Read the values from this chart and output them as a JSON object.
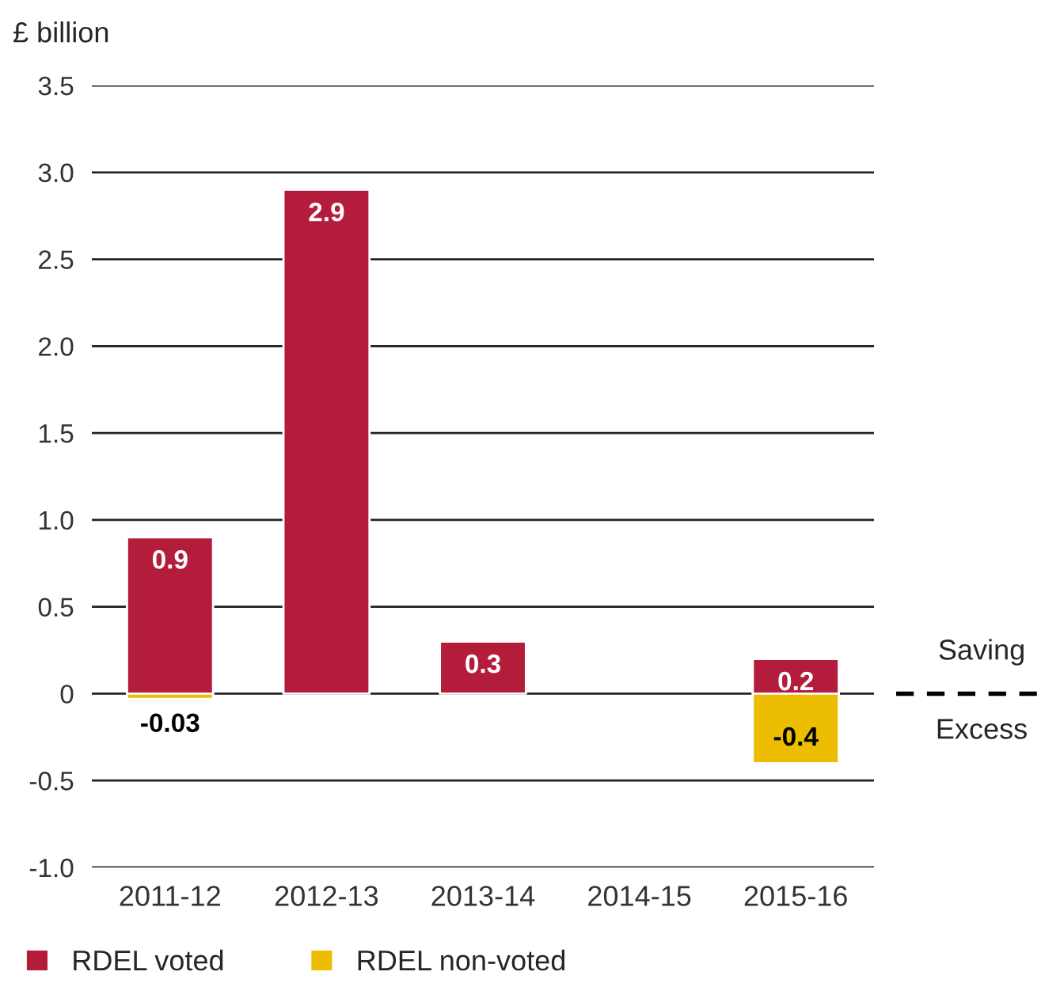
{
  "chart_data": {
    "type": "bar",
    "ylabel": "£ billion",
    "categories": [
      "2011-12",
      "2012-13",
      "2013-14",
      "2014-15",
      "2015-16"
    ],
    "series": [
      {
        "name": "RDEL voted",
        "color": "#b41c3c",
        "values": [
          0.9,
          2.9,
          0.3,
          null,
          0.2
        ]
      },
      {
        "name": "RDEL non-voted",
        "color": "#ecbd00",
        "values": [
          -0.03,
          null,
          null,
          null,
          -0.4
        ]
      }
    ],
    "ylim": [
      -1.0,
      3.5
    ],
    "yticks": [
      {
        "value": -1.0,
        "label": "-1.0"
      },
      {
        "value": -0.5,
        "label": "-0.5"
      },
      0,
      {
        "value": 0.5,
        "label": "0.5"
      },
      {
        "value": 1.0,
        "label": "1.0"
      },
      {
        "value": 1.5,
        "label": "1.5"
      },
      {
        "value": 2.0,
        "label": "2.0"
      },
      {
        "value": 2.5,
        "label": "2.5"
      },
      {
        "value": 3.0,
        "label": "3.0"
      },
      {
        "value": 3.5,
        "label": "3.5"
      }
    ],
    "grid": "y",
    "legend": "bottom",
    "data_labels": true,
    "annotations": [
      "Saving",
      "Excess"
    ]
  }
}
